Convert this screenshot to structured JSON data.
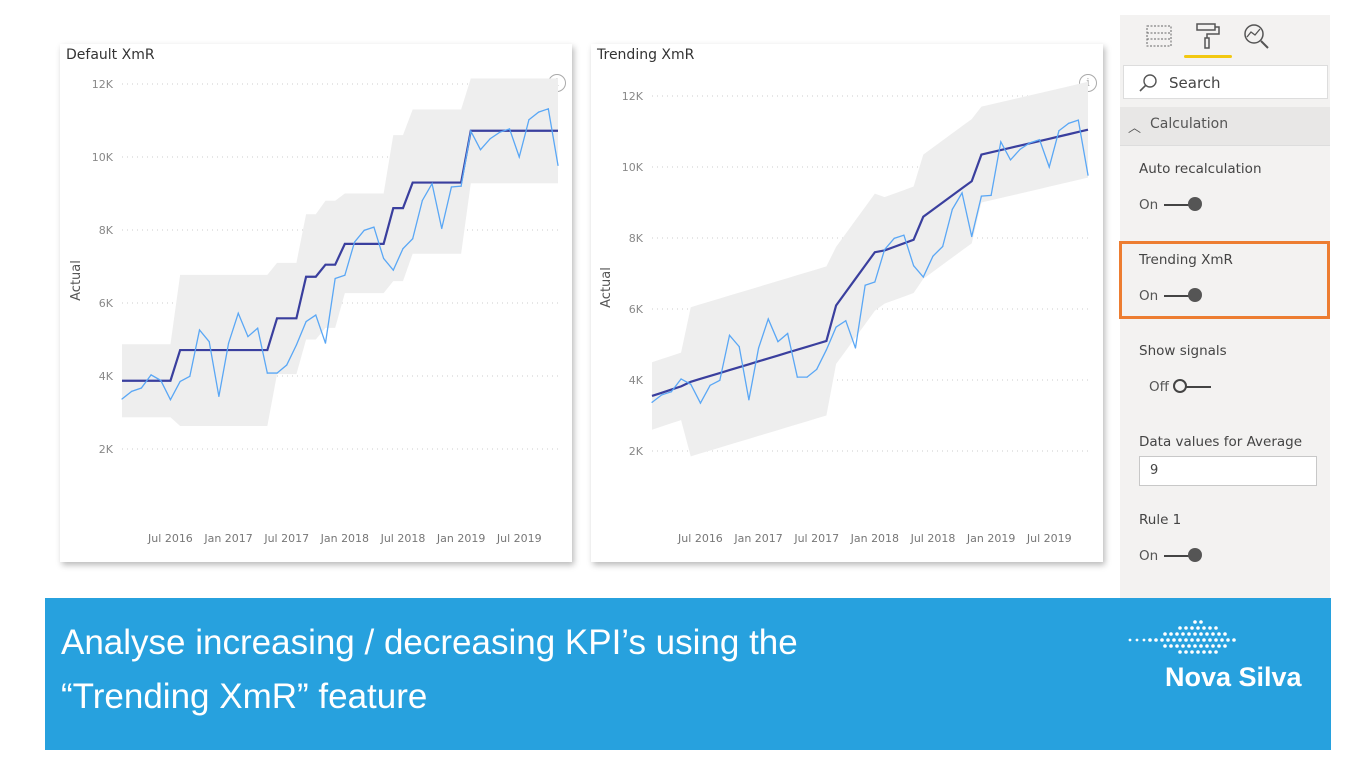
{
  "chart_data": [
    {
      "type": "line",
      "title": "Default XmR",
      "ylabel": "Actual",
      "xlabel": "",
      "ylim": [
        0,
        12000
      ],
      "yticks": [
        "2K",
        "4K",
        "6K",
        "8K",
        "10K",
        "12K"
      ],
      "ytick_values": [
        2000,
        4000,
        6000,
        8000,
        10000,
        12000
      ],
      "xticks": [
        "Jul 2016",
        "Jan 2017",
        "Jul 2017",
        "Jan 2018",
        "Jul 2018",
        "Jan 2019",
        "Jul 2019"
      ],
      "xtick_index": [
        5,
        11,
        17,
        23,
        29,
        35,
        41
      ],
      "x_start": "Feb 2016",
      "actual": [
        3370,
        3580,
        3670,
        4030,
        3880,
        3350,
        3850,
        3990,
        5260,
        4940,
        3440,
        4900,
        5720,
        5080,
        5310,
        4080,
        4080,
        4300,
        4850,
        5490,
        5670,
        4900,
        6670,
        6760,
        7670,
        7990,
        8080,
        7220,
        6900,
        7490,
        7760,
        8810,
        9270,
        8040,
        9180,
        9200,
        10710,
        10200,
        10500,
        10680,
        10770,
        10000,
        11020,
        11230,
        11320,
        9770
      ],
      "segments": [
        {
          "start": 0,
          "end": 5,
          "mean": 3870,
          "lower": 2870,
          "upper": 4870
        },
        {
          "start": 6,
          "end": 15,
          "mean": 4710,
          "lower": 2630,
          "upper": 6770
        },
        {
          "start": 16,
          "end": 18,
          "mean": 5580,
          "lower": 4050,
          "upper": 7100
        },
        {
          "start": 19,
          "end": 20,
          "mean": 6720,
          "lower": 5000,
          "upper": 8430
        },
        {
          "start": 21,
          "end": 22,
          "mean": 7050,
          "lower": 5320,
          "upper": 8800
        },
        {
          "start": 23,
          "end": 27,
          "mean": 7620,
          "lower": 6270,
          "upper": 9000
        },
        {
          "start": 28,
          "end": 29,
          "mean": 8600,
          "lower": 6600,
          "upper": 10600
        },
        {
          "start": 30,
          "end": 35,
          "mean": 9300,
          "lower": 7350,
          "upper": 11300
        },
        {
          "start": 36,
          "end": 45,
          "mean": 10720,
          "lower": 9280,
          "upper": 12150
        }
      ],
      "colors": {
        "actual": "#5aa7f5",
        "mean": "#3a3f9e",
        "band": "#eeeeee"
      }
    },
    {
      "type": "line",
      "title": "Trending XmR",
      "ylabel": "Actual",
      "xlabel": "",
      "ylim": [
        0,
        12000
      ],
      "yticks": [
        "2K",
        "4K",
        "6K",
        "8K",
        "10K",
        "12K"
      ],
      "ytick_values": [
        2000,
        4000,
        6000,
        8000,
        10000,
        12000
      ],
      "xticks": [
        "Jul 2016",
        "Jan 2017",
        "Jul 2017",
        "Jan 2018",
        "Jul 2018",
        "Jan 2019",
        "Jul 2019"
      ],
      "xtick_index": [
        5,
        11,
        17,
        23,
        29,
        35,
        41
      ],
      "x_start": "Feb 2016",
      "actual": [
        3370,
        3580,
        3670,
        4030,
        3880,
        3350,
        3850,
        3990,
        5260,
        4940,
        3440,
        4900,
        5720,
        5080,
        5310,
        4080,
        4080,
        4300,
        4850,
        5490,
        5670,
        4900,
        6670,
        6760,
        7670,
        7990,
        8080,
        7220,
        6900,
        7490,
        7760,
        8810,
        9270,
        8040,
        9180,
        9200,
        10710,
        10200,
        10500,
        10680,
        10770,
        10000,
        11020,
        11230,
        11320,
        9770
      ],
      "segments": [
        {
          "start": 0,
          "end": 3,
          "from": 3550,
          "to": 3820,
          "half": 950
        },
        {
          "start": 4,
          "end": 18,
          "from": 3950,
          "to": 5100,
          "half": 2100
        },
        {
          "start": 19,
          "end": 23,
          "from": 6100,
          "to": 7600,
          "half": 1650
        },
        {
          "start": 24,
          "end": 27,
          "from": 7650,
          "to": 7950,
          "half": 1500
        },
        {
          "start": 28,
          "end": 33,
          "from": 8600,
          "to": 9600,
          "half": 1750
        },
        {
          "start": 34,
          "end": 45,
          "from": 10350,
          "to": 11050,
          "half": 1350
        }
      ],
      "colors": {
        "actual": "#5aa7f5",
        "mean": "#3a3f9e",
        "band": "#eeeeee"
      }
    }
  ],
  "charts": {
    "left": {
      "title": "Default XmR",
      "info": "i"
    },
    "right": {
      "title": "Trending XmR",
      "info": "i"
    }
  },
  "panel": {
    "search_placeholder": "Search",
    "section": "Calculation",
    "auto_recalc": {
      "label": "Auto recalculation",
      "state": "On"
    },
    "trending": {
      "label": "Trending XmR",
      "state": "On"
    },
    "signals": {
      "label": "Show signals",
      "state": "Off"
    },
    "avg_values": {
      "label": "Data values for Average",
      "value": "9"
    },
    "rule1": {
      "label": "Rule 1",
      "state": "On"
    }
  },
  "banner": {
    "line1": "Analyse increasing / decreasing KPI’s using the",
    "line2": "“Trending XmR” feature",
    "logo": "Nova Silva"
  }
}
